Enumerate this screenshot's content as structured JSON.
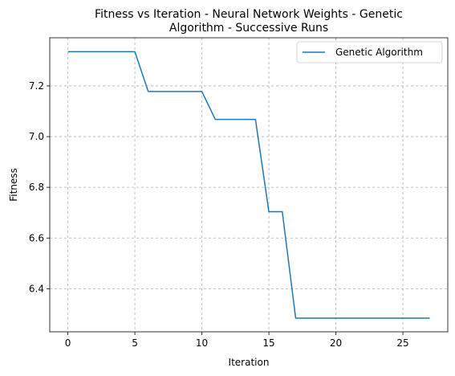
{
  "chart_data": {
    "type": "line",
    "title": "Fitness vs Iteration - Neural Network Weights - Genetic Algorithm - Successive Runs",
    "title_lines": [
      "Fitness vs Iteration - Neural Network Weights - Genetic",
      "Algorithm - Successive Runs"
    ],
    "xlabel": "Iteration",
    "ylabel": "Fitness",
    "xlim": [
      -1.35,
      28.35
    ],
    "ylim": [
      6.23,
      7.39
    ],
    "xticks": [
      0,
      5,
      10,
      15,
      20,
      25
    ],
    "yticks": [
      6.4,
      6.6,
      6.8,
      7.0,
      7.2
    ],
    "ytick_labels": [
      "6.4",
      "6.6",
      "6.8",
      "7.0",
      "7.2"
    ],
    "grid": true,
    "legend_position": "top-right",
    "series": [
      {
        "name": "Genetic Algorithm",
        "color": "#1f77b4",
        "x": [
          0,
          1,
          2,
          3,
          4,
          5,
          6,
          7,
          8,
          9,
          10,
          11,
          12,
          13,
          14,
          15,
          16,
          17,
          18,
          19,
          20,
          21,
          22,
          23,
          24,
          25,
          26,
          27
        ],
        "y": [
          7.335,
          7.335,
          7.335,
          7.335,
          7.335,
          7.335,
          7.178,
          7.178,
          7.178,
          7.178,
          7.178,
          7.068,
          7.068,
          7.068,
          7.068,
          6.704,
          6.704,
          6.284,
          6.284,
          6.284,
          6.284,
          6.284,
          6.284,
          6.284,
          6.284,
          6.284,
          6.284,
          6.284
        ]
      }
    ]
  }
}
